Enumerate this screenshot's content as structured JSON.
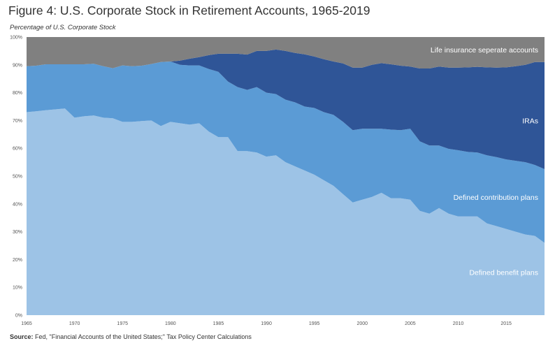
{
  "title": "Figure 4: U.S. Corporate Stock in Retirement Accounts, 1965-2019",
  "subtitle": "Percentage of U.S. Corporate Stock",
  "source": {
    "label": "Source:",
    "text": " Fed, \"Financial Accounts of the United States;\" Tax Policy Center Calculations"
  },
  "colors": {
    "defined_benefit": "#9dc3e6",
    "defined_contribution": "#5b9bd5",
    "iras": "#2f5597",
    "life_insurance": "#808080"
  },
  "chart_data": {
    "type": "area",
    "stacked": true,
    "xlim": [
      1965,
      2019
    ],
    "ylim": [
      0,
      100
    ],
    "x_ticks": [
      "1965",
      "1970",
      "1975",
      "1980",
      "1985",
      "1990",
      "1995",
      "2000",
      "2005",
      "2010",
      "2015"
    ],
    "y_ticks": [
      "0%",
      "10%",
      "20%",
      "30%",
      "40%",
      "50%",
      "60%",
      "70%",
      "80%",
      "90%",
      "100%"
    ],
    "grid": false,
    "x": [
      1965,
      1966,
      1967,
      1968,
      1969,
      1970,
      1971,
      1972,
      1973,
      1974,
      1975,
      1976,
      1977,
      1978,
      1979,
      1980,
      1981,
      1982,
      1983,
      1984,
      1985,
      1986,
      1987,
      1988,
      1989,
      1990,
      1991,
      1992,
      1993,
      1994,
      1995,
      1996,
      1997,
      1998,
      1999,
      2000,
      2001,
      2002,
      2003,
      2004,
      2005,
      2006,
      2007,
      2008,
      2009,
      2010,
      2011,
      2012,
      2013,
      2014,
      2015,
      2016,
      2017,
      2018,
      2019
    ],
    "series": [
      {
        "name": "Defined benefit plans",
        "cumulative": [
          73,
          73.3,
          73.7,
          74,
          74.3,
          71,
          71.5,
          71.8,
          71,
          70.8,
          69.5,
          69.5,
          69.8,
          70,
          68,
          69.5,
          69,
          68.5,
          69,
          66,
          64,
          64,
          59,
          59,
          58.5,
          57,
          57.5,
          55,
          53.5,
          52,
          50.5,
          48.5,
          46.5,
          43.5,
          40.5,
          41.5,
          42.5,
          44,
          42,
          42,
          41.5,
          37.5,
          36.5,
          38.5,
          36.5,
          35.5,
          35.5,
          35.5,
          33,
          32,
          31,
          30,
          29,
          28.5,
          26
        ]
      },
      {
        "name": "Defined contribution plans",
        "cumulative": [
          89.5,
          89.7,
          90.2,
          90.2,
          90.2,
          90.2,
          90.2,
          90.4,
          89.5,
          88.8,
          89.8,
          89.5,
          89.7,
          90.3,
          91,
          91.2,
          90,
          89.8,
          89.8,
          88.5,
          87.5,
          84,
          82,
          81,
          82,
          80,
          79.5,
          77.5,
          76.5,
          75,
          74.5,
          73,
          72,
          69.5,
          66.5,
          67,
          67,
          67,
          66.7,
          66.5,
          67,
          62.5,
          61,
          61,
          59.8,
          59.3,
          58.7,
          58.5,
          57.5,
          56.8,
          56,
          55.5,
          55,
          54,
          52.5
        ]
      },
      {
        "name": "IRAs",
        "cumulative": [
          89.5,
          89.7,
          90.2,
          90.2,
          90.2,
          90.2,
          90.2,
          90.4,
          89.5,
          88.8,
          89.8,
          89.5,
          89.7,
          90.3,
          91,
          91.2,
          91.5,
          92.2,
          92.8,
          93.5,
          94,
          94,
          94,
          93.7,
          95,
          95,
          95.5,
          95,
          94.3,
          93.8,
          93,
          92,
          91.2,
          90.5,
          89,
          89,
          90,
          90.6,
          90.2,
          89.7,
          89.4,
          88.7,
          88.7,
          89.4,
          89,
          89,
          89.1,
          89.3,
          89.1,
          89,
          89.1,
          89.5,
          90,
          91,
          91
        ]
      },
      {
        "name": "Life insurance seperate accounts",
        "cumulative": [
          100,
          100,
          100,
          100,
          100,
          100,
          100,
          100,
          100,
          100,
          100,
          100,
          100,
          100,
          100,
          100,
          100,
          100,
          100,
          100,
          100,
          100,
          100,
          100,
          100,
          100,
          100,
          100,
          100,
          100,
          100,
          100,
          100,
          100,
          100,
          100,
          100,
          100,
          100,
          100,
          100,
          100,
          100,
          100,
          100,
          100,
          100,
          100,
          100,
          100,
          100,
          100,
          100,
          100,
          100
        ]
      }
    ],
    "labels": [
      {
        "text": "Life insurance seperate accounts",
        "series": "Life insurance seperate accounts",
        "x": 2019,
        "y": 95.5
      },
      {
        "text": "IRAs",
        "series": "IRAs",
        "x": 2019,
        "y": 70
      },
      {
        "text": "Defined contribution plans",
        "series": "Defined contribution plans",
        "x": 2019,
        "y": 42.5
      },
      {
        "text": "Defined benefit plans",
        "series": "Defined benefit plans",
        "x": 2019,
        "y": 15.5
      }
    ]
  }
}
